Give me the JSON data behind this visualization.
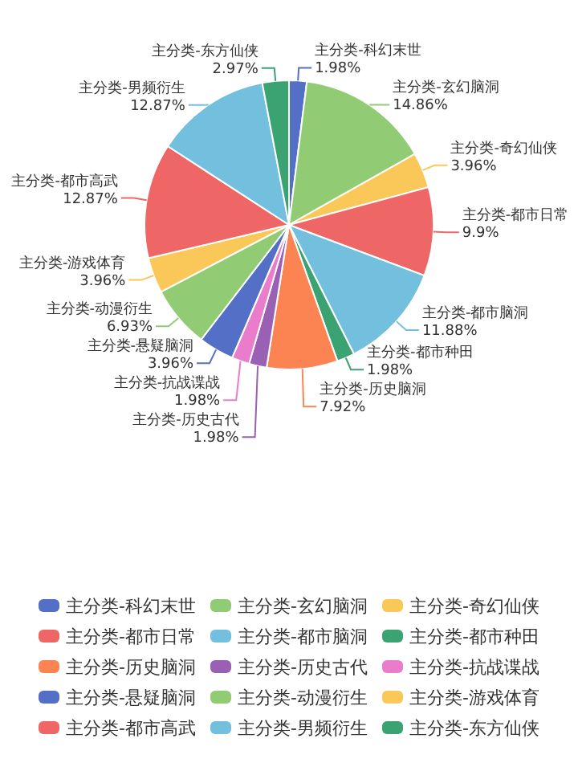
{
  "chart_data": {
    "type": "pie",
    "categories": [
      "主分类-科幻末世",
      "主分类-玄幻脑洞",
      "主分类-奇幻仙侠",
      "主分类-都市日常",
      "主分类-都市脑洞",
      "主分类-都市种田",
      "主分类-历史脑洞",
      "主分类-历史古代",
      "主分类-抗战谍战",
      "主分类-悬疑脑洞",
      "主分类-动漫衍生",
      "主分类-游戏体育",
      "主分类-都市高武",
      "主分类-男频衍生",
      "主分类-东方仙侠"
    ],
    "values": [
      1.98,
      14.86,
      3.96,
      9.9,
      11.88,
      1.98,
      7.92,
      1.98,
      1.98,
      3.96,
      6.93,
      3.96,
      12.87,
      12.87,
      2.97
    ],
    "colors": [
      "#5470c6",
      "#91cc75",
      "#fac858",
      "#ee6666",
      "#73c0de",
      "#3ba272",
      "#fc8452",
      "#9a60b4",
      "#ea7ccc",
      "#5470c6",
      "#91cc75",
      "#fac858",
      "#ee6666",
      "#73c0de",
      "#3ba272"
    ],
    "value_labels": [
      "1.98%",
      "14.86%",
      "3.96%",
      "9.9%",
      "11.88%",
      "1.98%",
      "7.92%",
      "1.98%",
      "1.98%",
      "3.96%",
      "6.93%",
      "3.96%",
      "12.87%",
      "12.87%",
      "2.97%"
    ],
    "legend": "bottom"
  }
}
